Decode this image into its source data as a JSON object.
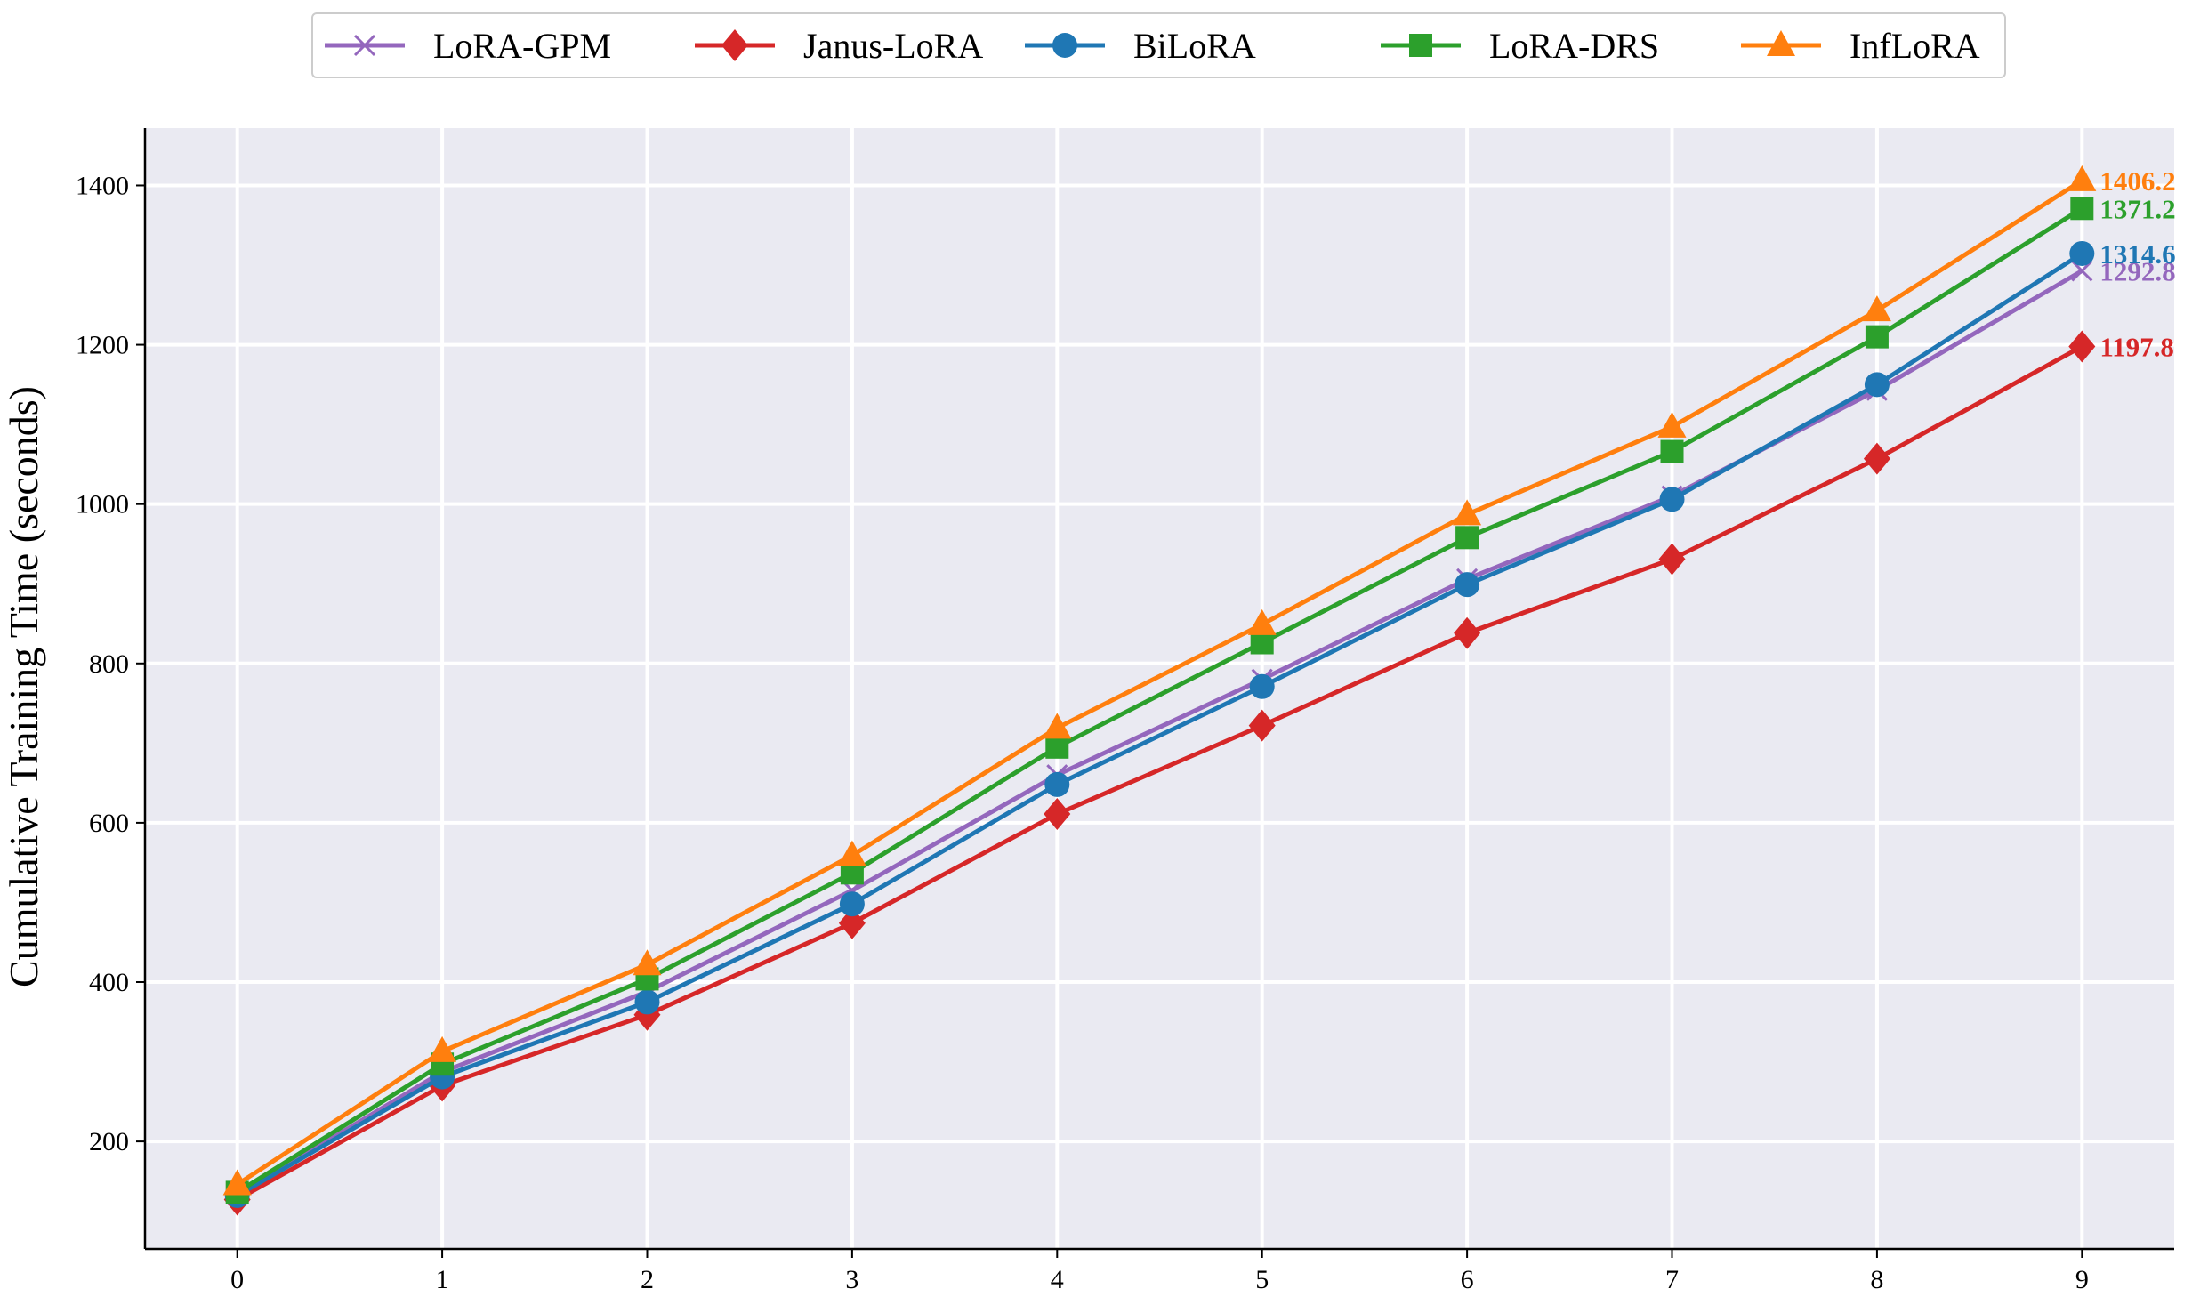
{
  "chart_data": {
    "type": "line",
    "title": "",
    "xlabel": "",
    "ylabel": "Cumulative Training Time (seconds)",
    "x": [
      0,
      1,
      2,
      3,
      4,
      5,
      6,
      7,
      8,
      9
    ],
    "x_ticks": [
      "0",
      "1",
      "2",
      "3",
      "4",
      "5",
      "6",
      "7",
      "8",
      "9"
    ],
    "y_ticks": [
      "200",
      "400",
      "600",
      "800",
      "1000",
      "1200",
      "1400"
    ],
    "xlim": [
      -0.45,
      9.45
    ],
    "ylim": [
      65,
      1472
    ],
    "grid": true,
    "legend_position": "top-center",
    "background_color": "#eaeaf2",
    "series": [
      {
        "name": "LoRA-GPM",
        "color": "#9467bd",
        "marker": "x",
        "values": [
          133,
          287,
          388,
          515,
          660,
          780,
          906,
          1010,
          1143,
          1292.8
        ],
        "end_label": "1292.8"
      },
      {
        "name": "Janus-LoRA",
        "color": "#d62728",
        "marker": "diamond",
        "values": [
          127,
          270,
          359,
          474,
          611,
          722,
          838,
          931,
          1057,
          1197.8
        ],
        "end_label": "1197.8"
      },
      {
        "name": "BiLoRA",
        "color": "#1f77b4",
        "marker": "circle",
        "values": [
          132,
          281,
          375,
          498,
          648,
          771,
          899,
          1006,
          1150,
          1314.6
        ],
        "end_label": "1314.6"
      },
      {
        "name": "LoRA-DRS",
        "color": "#2ca02c",
        "marker": "square",
        "values": [
          136,
          297,
          404,
          537,
          695,
          826,
          958,
          1066,
          1210,
          1371.2
        ],
        "end_label": "1371.2"
      },
      {
        "name": "InfLoRA",
        "color": "#ff7f0e",
        "marker": "triangle",
        "values": [
          146,
          313,
          422,
          559,
          719,
          849,
          987,
          1097,
          1243,
          1406.2
        ],
        "end_label": "1406.2"
      }
    ]
  }
}
